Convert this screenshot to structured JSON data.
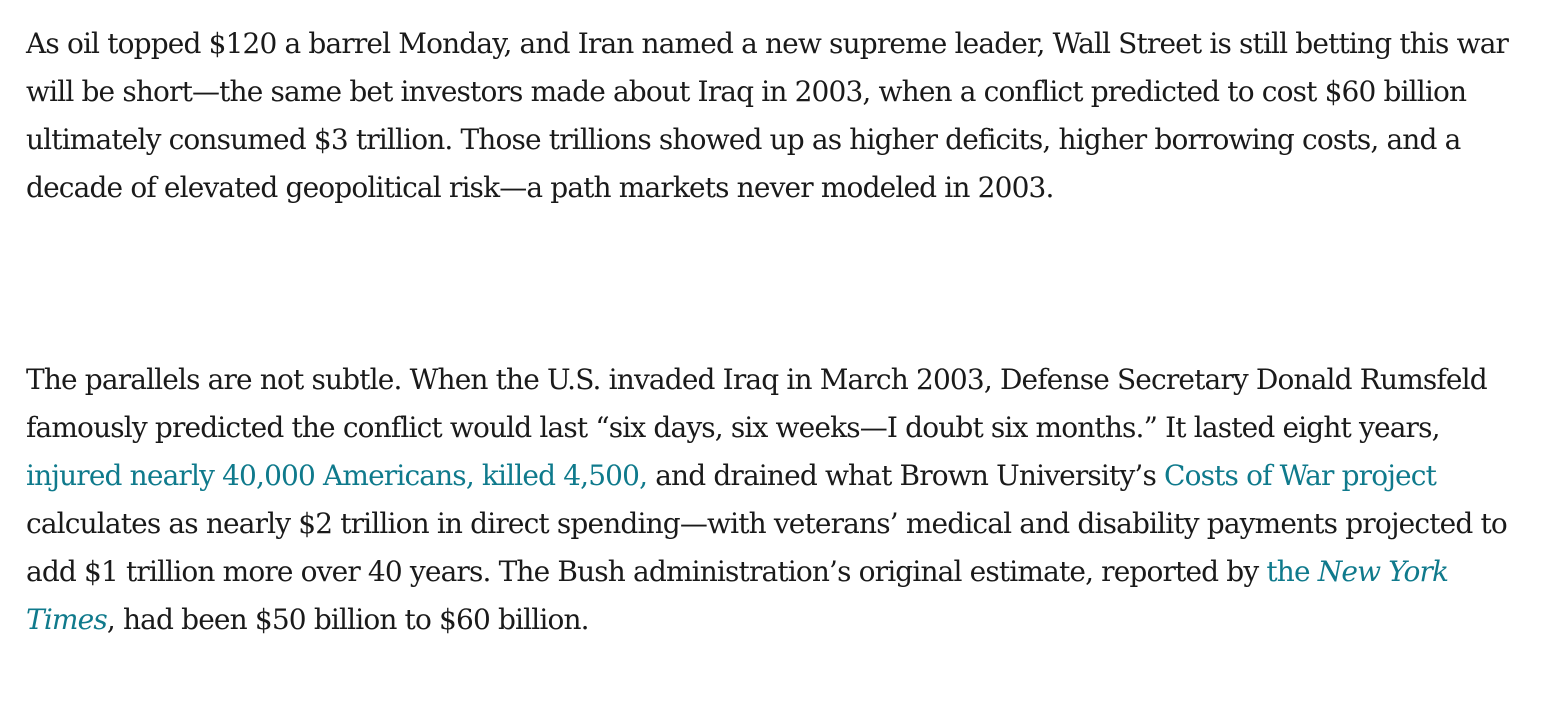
{
  "article": {
    "paragraph_1": {
      "text": "As oil topped $120 a barrel Monday, and Iran named a new supreme leader, Wall Street is still betting this war will be short—the same bet investors made about Iraq in 2003, when a conflict predicted to cost $60 billion ultimately consumed $3 trillion. Those trillions showed up as higher deficits, higher borrowing costs, and a decade of elevated geopolitical risk—a path markets never modeled in 2003."
    },
    "paragraph_2": {
      "part_1": "The parallels are not subtle. When the U.S. invaded Iraq in March 2003, Defense Secretary Donald Rumsfeld famously predicted the conflict would last “six days, six weeks—I doubt six months.” It lasted eight years, ",
      "link_casualties": "injured nearly 40,000 Americans, killed 4,500,",
      "part_2": " and drained what Brown University’s ",
      "link_costs_of_war": "Costs of War project",
      "part_3": " calculates as nearly $2 trillion in direct spending—with veterans’ medical and disability payments projected to add $1 trillion more over 40 years. The Bush administration’s original estimate, reported by ",
      "link_nyt_prefix": "the ",
      "link_nyt_title": "New York Times",
      "part_4": ", had been $50 billion to $60 billion."
    }
  },
  "colors": {
    "text": "#1a1a1a",
    "link": "#0f7a8c",
    "background": "#ffffff"
  }
}
